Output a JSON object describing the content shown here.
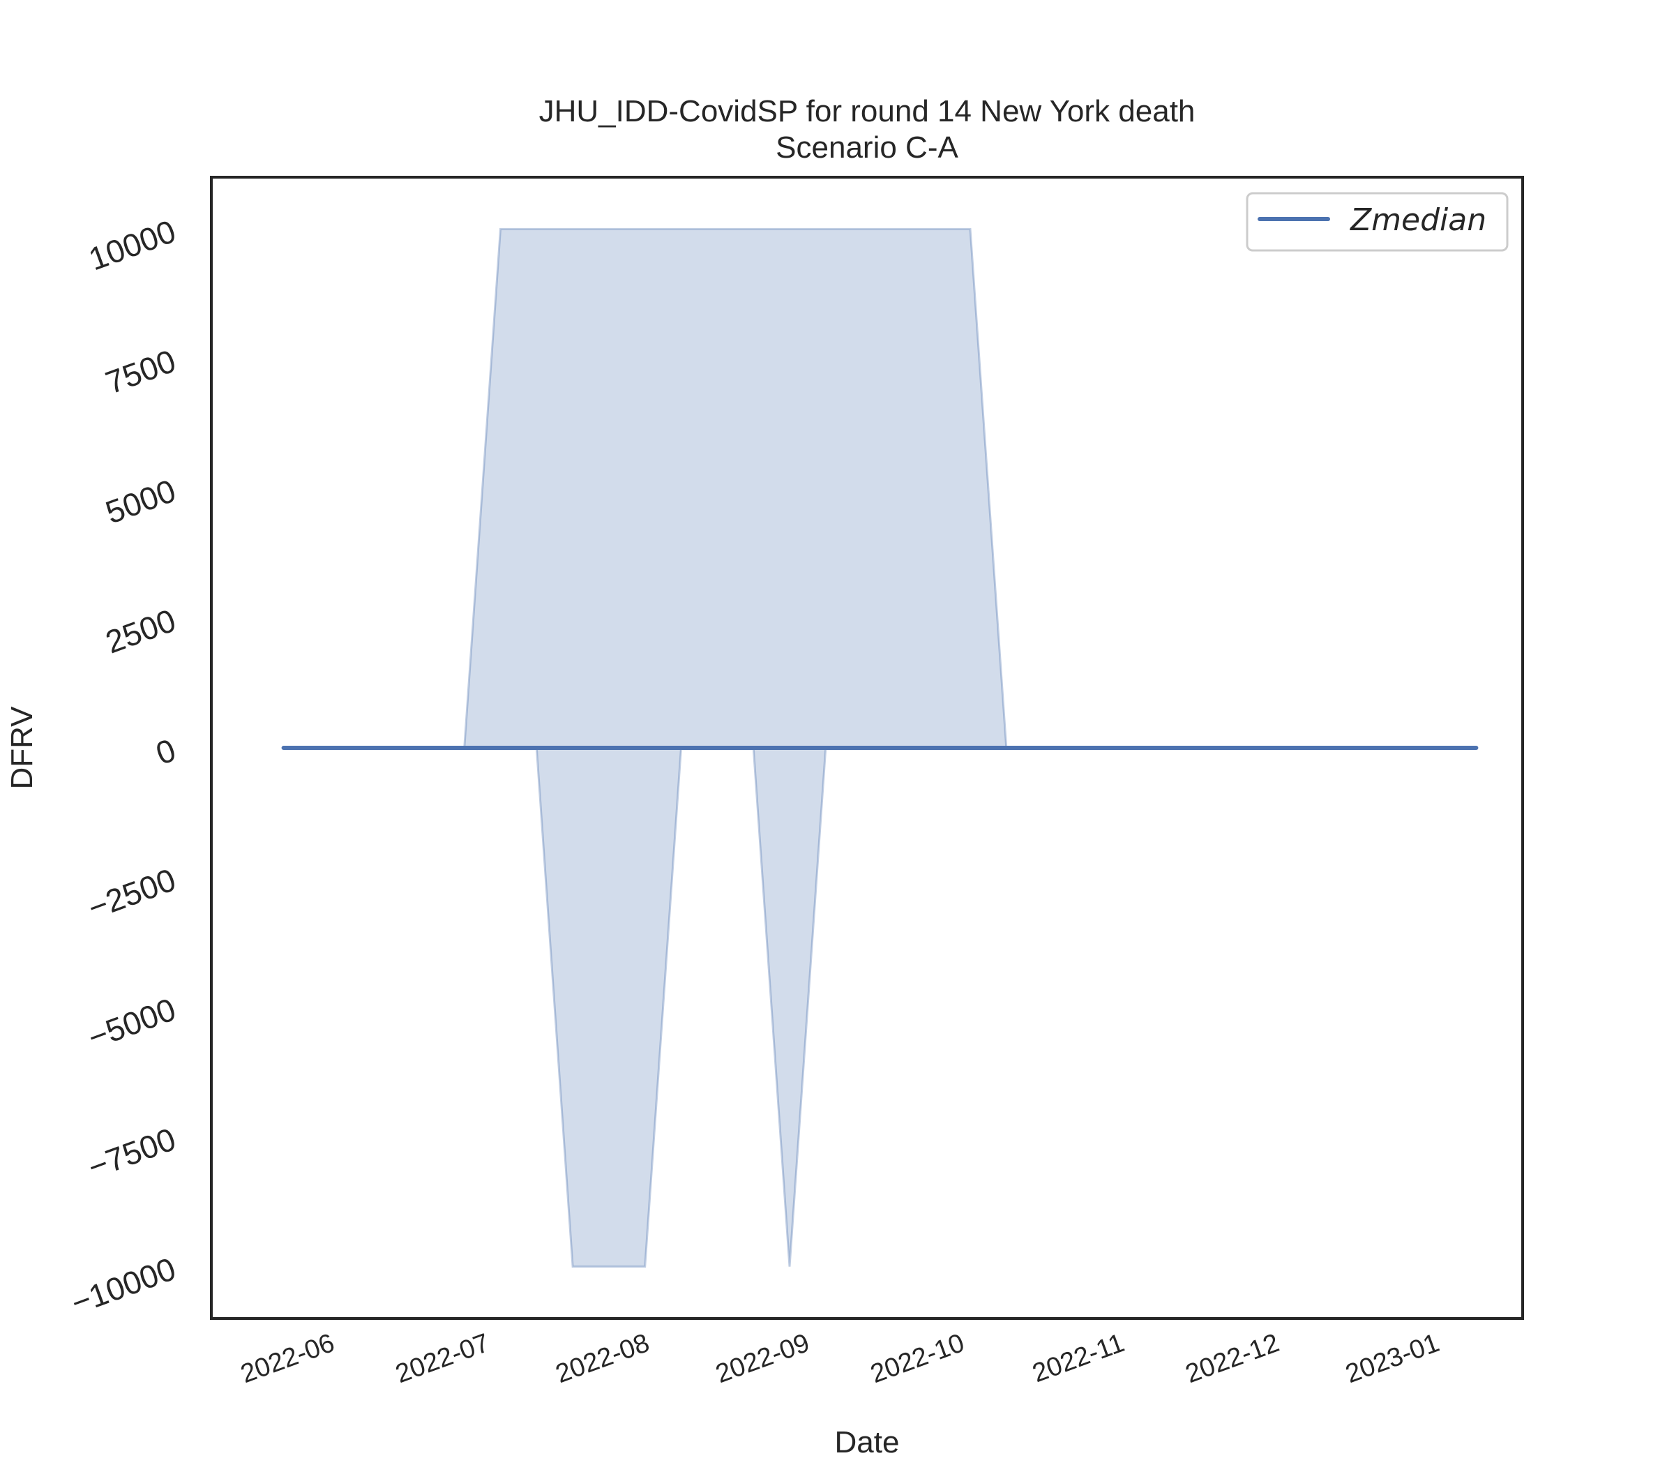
{
  "chart_data": {
    "type": "area",
    "title": "JHU_IDD-CovidSP for round 14 New York death",
    "subtitle": "Scenario C-A",
    "xlabel": "Date",
    "ylabel": "DFRV",
    "x_tick_labels": [
      "2022-06",
      "2022-07",
      "2022-08",
      "2022-09",
      "2022-10",
      "2022-11",
      "2022-12",
      "2023-01"
    ],
    "y_tick_labels": [
      "−10000",
      "−7500",
      "−5000",
      "−2500",
      "0",
      "2500",
      "5000",
      "7500",
      "10000"
    ],
    "y_tick_values": [
      -10000,
      -7500,
      -5000,
      -2500,
      0,
      2500,
      5000,
      7500,
      10000
    ],
    "ylim": [
      -11000,
      11000
    ],
    "xlim": [
      "2022-05-07",
      "2023-01-16"
    ],
    "grid": false,
    "legend": {
      "position": "top-right",
      "entries": [
        "Zmedian"
      ]
    },
    "series": [
      {
        "name": "Zmedian",
        "color": "#4c72b0",
        "x": [
          "2022-05-21",
          "2023-01-07"
        ],
        "y": [
          0,
          0
        ]
      }
    ],
    "band": {
      "color": "#4c72b0",
      "opacity": 0.25,
      "x": [
        "2022-05-21",
        "2022-06-25",
        "2022-07-02",
        "2022-07-09",
        "2022-07-16",
        "2022-07-23",
        "2022-07-30",
        "2022-08-06",
        "2022-08-13",
        "2022-08-20",
        "2022-08-27",
        "2022-09-03",
        "2022-09-10",
        "2022-09-17",
        "2022-09-24",
        "2022-10-01",
        "2022-10-08",
        "2023-01-07"
      ],
      "lower": [
        0,
        0,
        0,
        0,
        -10000,
        -10000,
        -10000,
        0,
        0,
        0,
        -10000,
        0,
        0,
        0,
        0,
        0,
        0,
        0
      ],
      "upper": [
        0,
        0,
        10000,
        10000,
        10000,
        10000,
        10000,
        10000,
        10000,
        10000,
        10000,
        10000,
        10000,
        10000,
        10000,
        10000,
        0,
        0
      ]
    }
  }
}
